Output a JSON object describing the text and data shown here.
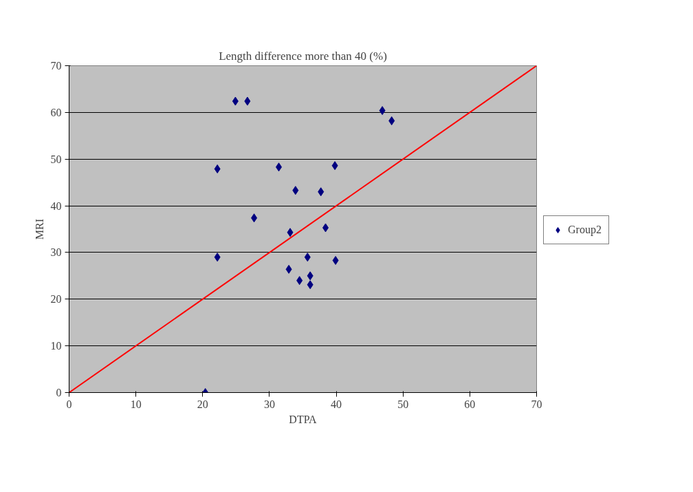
{
  "chart_data": {
    "type": "scatter",
    "title": "Length difference more than 40 (%)",
    "xlabel": "DTPA",
    "ylabel": "MRI",
    "xlim": [
      0,
      70
    ],
    "xticks": [
      0,
      10,
      20,
      30,
      40,
      50,
      60,
      70
    ],
    "ylim": [
      0,
      70
    ],
    "yticks": [
      0,
      10,
      20,
      30,
      40,
      50,
      60,
      70
    ],
    "grid": "y",
    "legend": "right",
    "series": [
      {
        "name": "Group2",
        "color": "#000080",
        "marker": "diamond",
        "x": [
          20.4,
          22.2,
          22.2,
          24.9,
          26.7,
          27.7,
          31.4,
          33.9,
          33.1,
          32.9,
          34.5,
          35.7,
          36.1,
          36.1,
          37.7,
          38.4,
          39.8,
          39.9,
          46.9,
          48.3
        ],
        "values": [
          0,
          47.9,
          29.0,
          62.4,
          62.4,
          37.4,
          48.3,
          43.3,
          34.3,
          26.4,
          24.0,
          29.0,
          25.0,
          23.1,
          43.0,
          35.3,
          48.6,
          28.3,
          60.4,
          58.2
        ]
      },
      {
        "type": "line",
        "marker": "none",
        "color": "#ff0000",
        "x": [
          0,
          70
        ],
        "values": [
          0,
          70
        ]
      }
    ]
  }
}
